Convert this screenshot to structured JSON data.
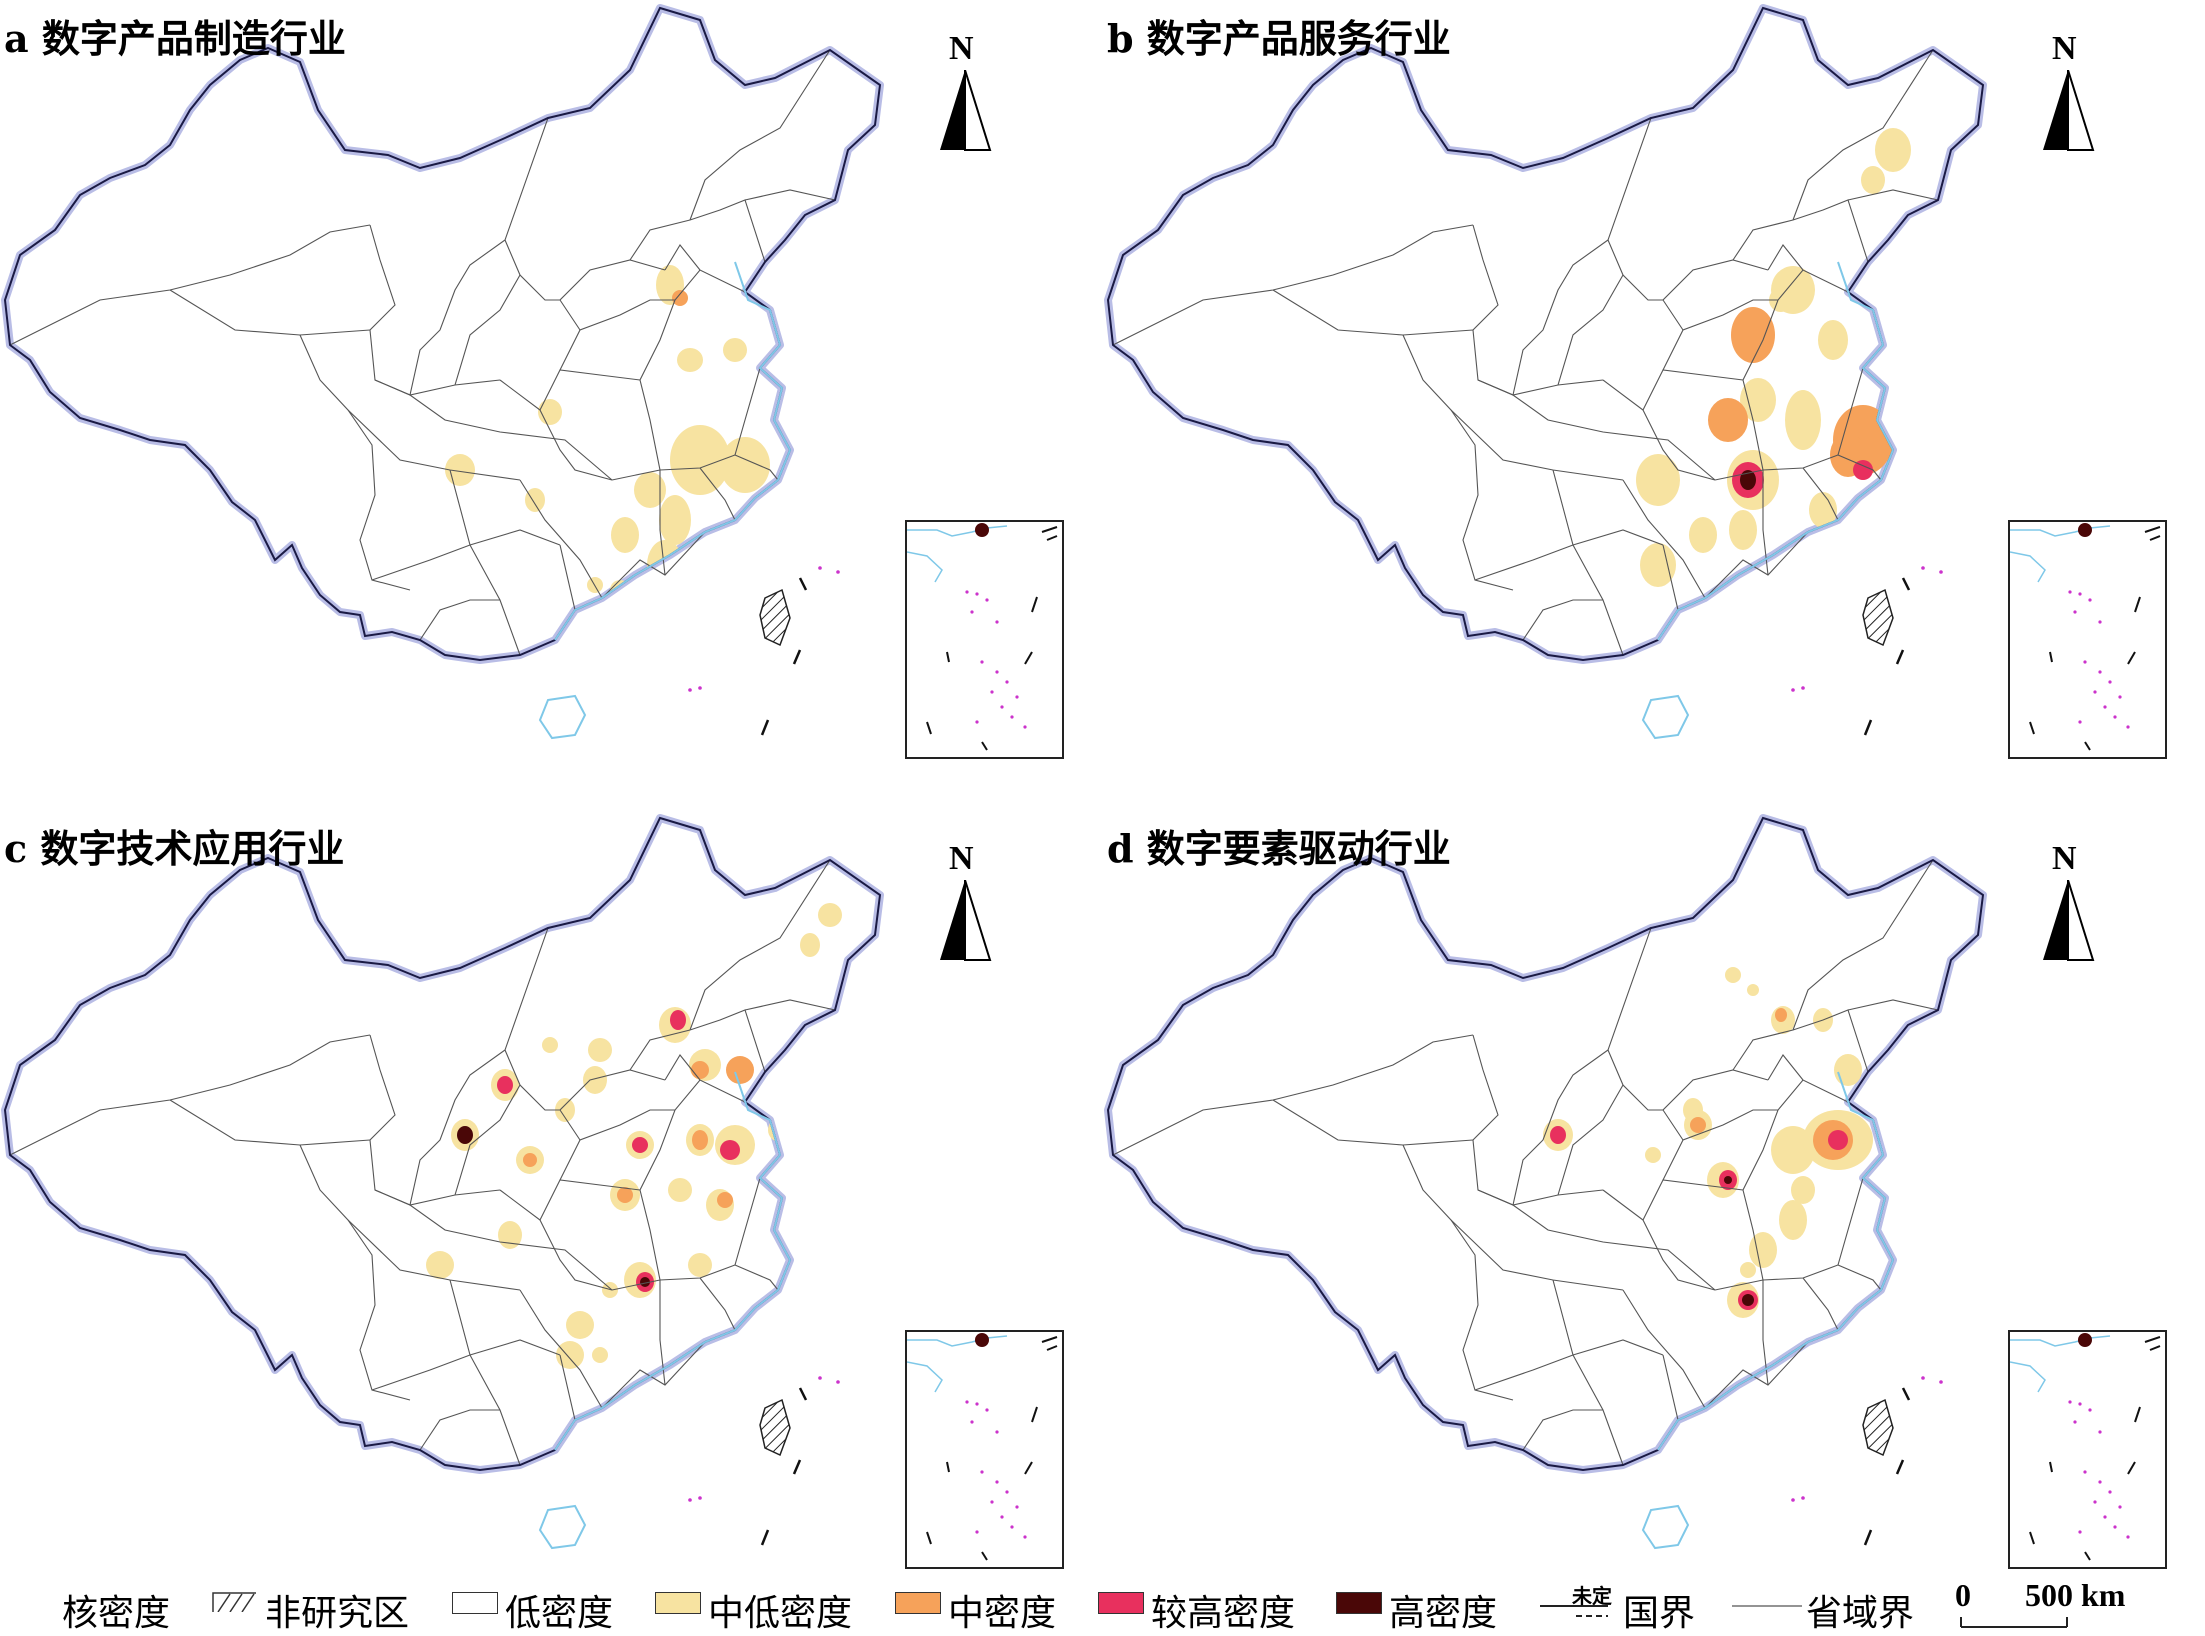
{
  "panels": [
    {
      "title": "a 数字产品制造行业"
    },
    {
      "title": "b 数字产品服务行业"
    },
    {
      "title": "c 数字技术应用行业"
    },
    {
      "title": "d 数字要素驱动行业"
    }
  ],
  "north_label": "N",
  "legend": {
    "title": "核密度",
    "items": [
      {
        "label": "非研究区",
        "pattern": "hatch"
      },
      {
        "label": "低密度",
        "color": "#ffffff"
      },
      {
        "label": "中低密度",
        "color": "#f7e3a1"
      },
      {
        "label": "中密度",
        "color": "#f6a25a"
      },
      {
        "label": "较高密度",
        "color": "#e8305e"
      },
      {
        "label": "高密度",
        "color": "#4a0707"
      }
    ],
    "border_national": "国界",
    "border_undetermined": "未定",
    "border_provincial": "省域界"
  },
  "scale": {
    "zero": "0",
    "distance": "500 km"
  },
  "colors": {
    "low_mid": "#f7e3a1",
    "mid": "#f6a25a",
    "high_mid": "#e8305e",
    "high": "#4a0707",
    "coast": "#7fc8e8",
    "border": "#1a1a44"
  }
}
